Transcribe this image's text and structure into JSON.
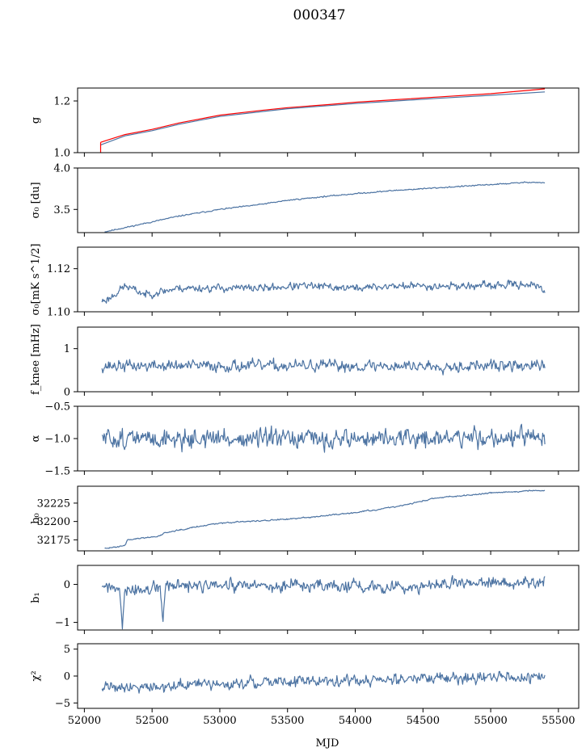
{
  "figure_title": "000347",
  "colors": {
    "main": "#4c73a2",
    "highlight": "#ff0000"
  },
  "chart_data": {
    "type": "line",
    "shared_x": {
      "label": "MJD",
      "range": [
        51950,
        55650
      ],
      "ticks": [
        52000,
        52500,
        53000,
        53500,
        54000,
        54500,
        55000,
        55500
      ]
    },
    "panels": [
      {
        "id": "g",
        "ylabel": "g",
        "ylim": [
          1.0,
          1.25
        ],
        "yticks": [
          1.0,
          1.2
        ],
        "ytick_labels": [
          "1.0",
          "1.2"
        ],
        "series": [
          {
            "name": "g",
            "color": "main",
            "width": 1.3,
            "points": [
              [
                52120,
                1.03
              ],
              [
                52300,
                1.065
              ],
              [
                52500,
                1.085
              ],
              [
                52700,
                1.11
              ],
              [
                53000,
                1.14
              ],
              [
                53300,
                1.158
              ],
              [
                53500,
                1.17
              ],
              [
                53800,
                1.182
              ],
              [
                54000,
                1.19
              ],
              [
                54300,
                1.2
              ],
              [
                54600,
                1.21
              ],
              [
                55000,
                1.222
              ],
              [
                55400,
                1.235
              ]
            ]
          },
          {
            "name": "g (flagged)",
            "color": "highlight",
            "width": 2.4,
            "points": [
              [
                52120,
                1.04
              ],
              [
                52300,
                1.07
              ],
              [
                52500,
                1.09
              ],
              [
                52700,
                1.115
              ],
              [
                53000,
                1.145
              ],
              [
                53300,
                1.163
              ],
              [
                53500,
                1.174
              ],
              [
                53800,
                1.186
              ],
              [
                54000,
                1.195
              ],
              [
                54300,
                1.205
              ],
              [
                54600,
                1.215
              ],
              [
                55000,
                1.228
              ],
              [
                55400,
                1.247
              ]
            ]
          },
          {
            "name": "g (flagged start)",
            "color": "highlight",
            "width": 3,
            "points": [
              [
                52120,
                1.0
              ],
              [
                52120,
                1.04
              ]
            ]
          }
        ]
      },
      {
        "id": "sigma0_du",
        "ylabel": "σ₀ [du]",
        "ylim": [
          3.22,
          4.0
        ],
        "yticks": [
          3.5,
          4.0
        ],
        "ytick_labels": [
          "3.5",
          "4.0"
        ],
        "series": [
          {
            "name": "sigma0_du",
            "color": "main",
            "width": 1.2,
            "noise": 0.005,
            "seed": 11,
            "points": [
              [
                52150,
                3.23
              ],
              [
                52300,
                3.28
              ],
              [
                52500,
                3.35
              ],
              [
                52700,
                3.42
              ],
              [
                53000,
                3.5
              ],
              [
                53300,
                3.56
              ],
              [
                53500,
                3.61
              ],
              [
                53800,
                3.66
              ],
              [
                54000,
                3.69
              ],
              [
                54300,
                3.73
              ],
              [
                54600,
                3.76
              ],
              [
                55000,
                3.8
              ],
              [
                55300,
                3.83
              ],
              [
                55400,
                3.82
              ]
            ]
          }
        ]
      },
      {
        "id": "sigma0_mk",
        "ylabel": "σ₀[mK s^1/2]",
        "ylim": [
          1.1,
          1.13
        ],
        "yticks": [
          1.1,
          1.12
        ],
        "ytick_labels": [
          "1.10",
          "1.12"
        ],
        "series": [
          {
            "name": "sigma0_mk",
            "color": "main",
            "width": 1.2,
            "noise": 0.0012,
            "seed": 23,
            "points": [
              [
                52130,
                1.105
              ],
              [
                52180,
                1.106
              ],
              [
                52300,
                1.112
              ],
              [
                52450,
                1.108
              ],
              [
                52700,
                1.111
              ],
              [
                53000,
                1.111
              ],
              [
                53300,
                1.111
              ],
              [
                53600,
                1.112
              ],
              [
                54000,
                1.111
              ],
              [
                54300,
                1.112
              ],
              [
                54600,
                1.112
              ],
              [
                55000,
                1.112
              ],
              [
                55300,
                1.113
              ],
              [
                55400,
                1.109
              ]
            ]
          }
        ]
      },
      {
        "id": "fknee",
        "ylabel": "f_knee [mHz]",
        "ylim": [
          0,
          1.5
        ],
        "yticks": [
          0,
          1
        ],
        "ytick_labels": [
          "0",
          "1"
        ],
        "series": [
          {
            "name": "fknee",
            "color": "main",
            "width": 1.2,
            "noise": 0.09,
            "seed": 37,
            "points": [
              [
                52130,
                0.6
              ],
              [
                52500,
                0.6
              ],
              [
                53000,
                0.6
              ],
              [
                53500,
                0.6
              ],
              [
                54000,
                0.6
              ],
              [
                54500,
                0.6
              ],
              [
                55000,
                0.6
              ],
              [
                55400,
                0.6
              ]
            ]
          }
        ]
      },
      {
        "id": "alpha",
        "ylabel": "α",
        "ylim": [
          -1.5,
          -0.5
        ],
        "yticks": [
          -1.5,
          -1.0,
          -0.5
        ],
        "ytick_labels": [
          "−1.5",
          "−1.0",
          "−0.5"
        ],
        "series": [
          {
            "name": "alpha",
            "color": "main",
            "width": 1.2,
            "noise": 0.1,
            "seed": 51,
            "points": [
              [
                52130,
                -1.0
              ],
              [
                52500,
                -1.0
              ],
              [
                53000,
                -1.0
              ],
              [
                53500,
                -1.02
              ],
              [
                54000,
                -1.0
              ],
              [
                54500,
                -1.0
              ],
              [
                55000,
                -0.98
              ],
              [
                55400,
                -1.0
              ]
            ]
          }
        ]
      },
      {
        "id": "b0",
        "ylabel": "b₀",
        "ylim": [
          32160,
          32248
        ],
        "yticks": [
          32175,
          32200,
          32225
        ],
        "ytick_labels": [
          "32175",
          "32200",
          "32225"
        ],
        "series": [
          {
            "name": "b0",
            "color": "main",
            "width": 1.2,
            "noise": 0.6,
            "seed": 63,
            "points": [
              [
                52150,
                32163
              ],
              [
                52250,
                32166
              ],
              [
                52300,
                32168
              ],
              [
                52320,
                32175
              ],
              [
                52550,
                32180
              ],
              [
                52600,
                32185
              ],
              [
                52800,
                32192
              ],
              [
                53000,
                32198
              ],
              [
                53500,
                32203
              ],
              [
                54000,
                32212
              ],
              [
                54300,
                32220
              ],
              [
                54600,
                32232
              ],
              [
                55000,
                32239
              ],
              [
                55300,
                32242
              ],
              [
                55400,
                32242
              ]
            ]
          }
        ]
      },
      {
        "id": "b1",
        "ylabel": "b₁",
        "ylim": [
          -1.2,
          0.5
        ],
        "yticks": [
          -1,
          0
        ],
        "ytick_labels": [
          "−1",
          "0"
        ],
        "series": [
          {
            "name": "b1",
            "color": "main",
            "width": 1.2,
            "noise": 0.11,
            "seed": 77,
            "points": [
              [
                52130,
                0.0
              ],
              [
                52260,
                -0.2
              ],
              [
                52280,
                -1.1
              ],
              [
                52300,
                -0.2
              ],
              [
                52560,
                -0.1
              ],
              [
                52580,
                -0.9
              ],
              [
                52600,
                -0.05
              ],
              [
                53000,
                -0.05
              ],
              [
                53500,
                -0.05
              ],
              [
                54000,
                -0.05
              ],
              [
                54500,
                -0.05
              ],
              [
                55000,
                0.05
              ],
              [
                55400,
                0.05
              ]
            ]
          }
        ]
      },
      {
        "id": "chi2",
        "ylabel": "χ²",
        "ylim": [
          -6,
          6
        ],
        "yticks": [
          -5,
          0,
          5
        ],
        "ytick_labels": [
          "−5",
          "0",
          "5"
        ],
        "series": [
          {
            "name": "chi2",
            "color": "main",
            "width": 1.2,
            "noise": 0.7,
            "seed": 91,
            "points": [
              [
                52130,
                -1.8
              ],
              [
                52500,
                -2.0
              ],
              [
                53000,
                -1.5
              ],
              [
                53500,
                -1.0
              ],
              [
                54000,
                -0.8
              ],
              [
                54500,
                -0.5
              ],
              [
                55000,
                -0.2
              ],
              [
                55400,
                -0.3
              ]
            ]
          }
        ]
      }
    ]
  }
}
